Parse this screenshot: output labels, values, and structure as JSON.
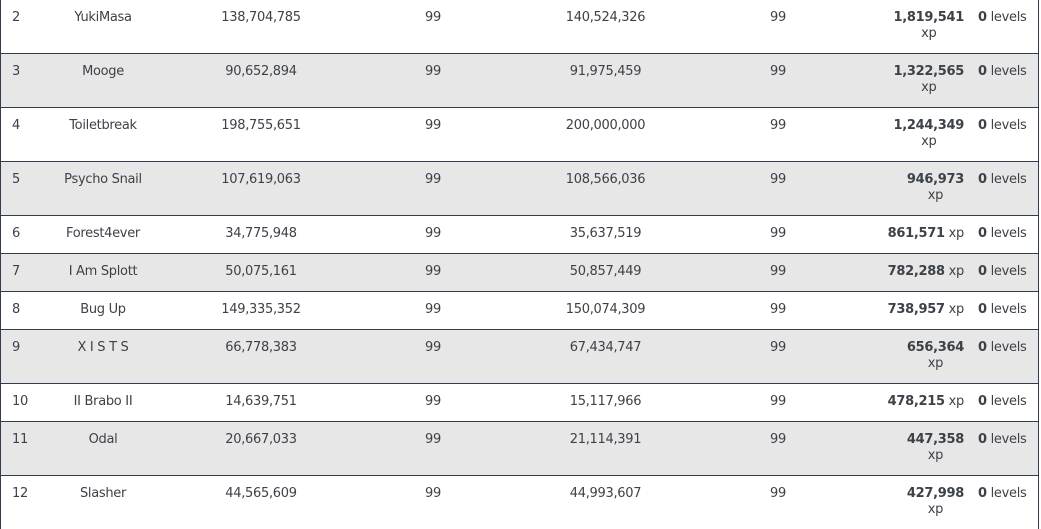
{
  "table": {
    "rows": [
      {
        "rank": "2",
        "name": "YukiMasa",
        "xp_start": "138,704,785",
        "lvl_start": "99",
        "xp_end": "140,524,326",
        "lvl_end": "99",
        "gain_xp": "1,819,541",
        "xp_unit": "xp",
        "gain_levels": "0",
        "levels_unit": "levels",
        "wrap": true
      },
      {
        "rank": "3",
        "name": "Mooge",
        "xp_start": "90,652,894",
        "lvl_start": "99",
        "xp_end": "91,975,459",
        "lvl_end": "99",
        "gain_xp": "1,322,565",
        "xp_unit": "xp",
        "gain_levels": "0",
        "levels_unit": "levels",
        "wrap": true
      },
      {
        "rank": "4",
        "name": "Toiletbreak",
        "xp_start": "198,755,651",
        "lvl_start": "99",
        "xp_end": "200,000,000",
        "lvl_end": "99",
        "gain_xp": "1,244,349",
        "xp_unit": "xp",
        "gain_levels": "0",
        "levels_unit": "levels",
        "wrap": true
      },
      {
        "rank": "5",
        "name": "Psycho Snail",
        "xp_start": "107,619,063",
        "lvl_start": "99",
        "xp_end": "108,566,036",
        "lvl_end": "99",
        "gain_xp": "946,973",
        "xp_unit": "xp",
        "gain_levels": "0",
        "levels_unit": "levels",
        "wrap": true
      },
      {
        "rank": "6",
        "name": "Forest4ever",
        "xp_start": "34,775,948",
        "lvl_start": "99",
        "xp_end": "35,637,519",
        "lvl_end": "99",
        "gain_xp": "861,571",
        "xp_unit": "xp",
        "gain_levels": "0",
        "levels_unit": "levels",
        "wrap": false
      },
      {
        "rank": "7",
        "name": "I Am Splott",
        "xp_start": "50,075,161",
        "lvl_start": "99",
        "xp_end": "50,857,449",
        "lvl_end": "99",
        "gain_xp": "782,288",
        "xp_unit": "xp",
        "gain_levels": "0",
        "levels_unit": "levels",
        "wrap": false
      },
      {
        "rank": "8",
        "name": "Bug Up",
        "xp_start": "149,335,352",
        "lvl_start": "99",
        "xp_end": "150,074,309",
        "lvl_end": "99",
        "gain_xp": "738,957",
        "xp_unit": "xp",
        "gain_levels": "0",
        "levels_unit": "levels",
        "wrap": false
      },
      {
        "rank": "9",
        "name": "X I S T S",
        "xp_start": "66,778,383",
        "lvl_start": "99",
        "xp_end": "67,434,747",
        "lvl_end": "99",
        "gain_xp": "656,364",
        "xp_unit": "xp",
        "gain_levels": "0",
        "levels_unit": "levels",
        "wrap": true
      },
      {
        "rank": "10",
        "name": "II Brabo II",
        "xp_start": "14,639,751",
        "lvl_start": "99",
        "xp_end": "15,117,966",
        "lvl_end": "99",
        "gain_xp": "478,215",
        "xp_unit": "xp",
        "gain_levels": "0",
        "levels_unit": "levels",
        "wrap": false
      },
      {
        "rank": "11",
        "name": "Odal",
        "xp_start": "20,667,033",
        "lvl_start": "99",
        "xp_end": "21,114,391",
        "lvl_end": "99",
        "gain_xp": "447,358",
        "xp_unit": "xp",
        "gain_levels": "0",
        "levels_unit": "levels",
        "wrap": true
      },
      {
        "rank": "12",
        "name": "Slasher",
        "xp_start": "44,565,609",
        "lvl_start": "99",
        "xp_end": "44,993,607",
        "lvl_end": "99",
        "gain_xp": "427,998",
        "xp_unit": "xp",
        "gain_levels": "0",
        "levels_unit": "levels",
        "wrap": true
      }
    ]
  },
  "colors": {
    "row_shaded": "#e7e7e7",
    "row_plain": "#ffffff",
    "border": "#2f3d4c",
    "text": "#3d4248"
  }
}
